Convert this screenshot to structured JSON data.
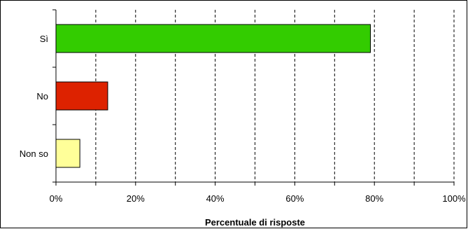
{
  "chart_data": {
    "type": "bar",
    "orientation": "horizontal",
    "categories": [
      "Sì",
      "No",
      "Non so"
    ],
    "values": [
      79,
      13,
      6
    ],
    "colors": [
      "#33cc00",
      "#dd2200",
      "#ffff99"
    ],
    "x_tick_labels": [
      "0%",
      "20%",
      "40%",
      "60%",
      "80%",
      "100%"
    ],
    "xlim": [
      0,
      100
    ],
    "xlabel": "Percentuale di risposte",
    "ylabel": "",
    "title": "",
    "grid": "vertical dashed lines every 10%",
    "legend": "none"
  }
}
